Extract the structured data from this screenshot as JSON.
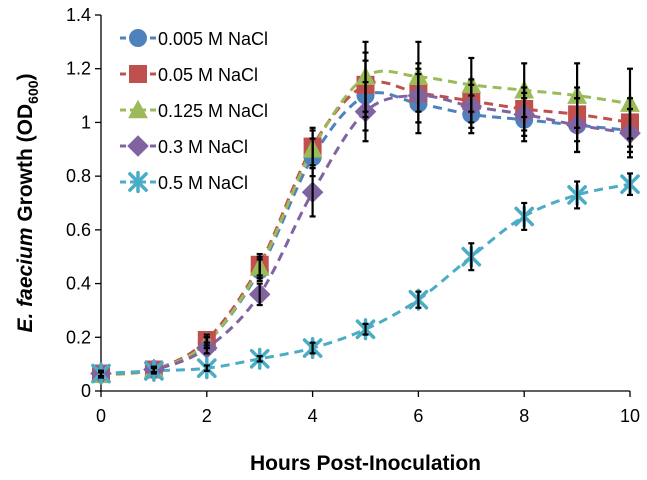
{
  "chart_data": {
    "type": "line",
    "title": "",
    "xlabel": "Hours Post-Inoculation",
    "ylabel": {
      "italic": "E. faecium",
      "normal": " Growth (OD",
      "subscript": "600",
      "close": ")"
    },
    "xlim": [
      0,
      10
    ],
    "ylim": [
      0,
      1.4
    ],
    "xticks": [
      0,
      2,
      4,
      6,
      8,
      10
    ],
    "xtick_labels": [
      "0",
      "2",
      "4",
      "6",
      "8",
      "10"
    ],
    "yticks": [
      0,
      0.2,
      0.4,
      0.6,
      0.8,
      1,
      1.2,
      1.4
    ],
    "ytick_labels": [
      "0",
      "0.2",
      "0.4",
      "0.6",
      "0.8",
      "1",
      "1.2",
      "1.4"
    ],
    "grid": false,
    "legend_position": "top-left",
    "x": [
      0,
      1,
      2,
      3,
      4,
      5,
      6,
      7,
      8,
      9,
      10
    ],
    "series": [
      {
        "name": "0.005 M NaCl",
        "color": "#4F81BD",
        "marker": "circle",
        "values": [
          0.065,
          0.08,
          0.18,
          0.45,
          0.87,
          1.1,
          1.07,
          1.03,
          1.01,
          0.99,
          0.97
        ],
        "errors": [
          0.01,
          0.01,
          0.02,
          0.04,
          0.07,
          0.13,
          0.11,
          0.07,
          0.08,
          0.1,
          0.08
        ]
      },
      {
        "name": "0.05 M NaCl",
        "color": "#C0504D",
        "marker": "square",
        "values": [
          0.065,
          0.08,
          0.19,
          0.47,
          0.91,
          1.14,
          1.11,
          1.08,
          1.05,
          1.03,
          1.0
        ],
        "errors": [
          0.01,
          0.01,
          0.02,
          0.04,
          0.07,
          0.12,
          0.11,
          0.08,
          0.08,
          0.1,
          0.09
        ]
      },
      {
        "name": "0.125 M NaCl",
        "color": "#9BBB59",
        "marker": "triangle",
        "values": [
          0.06,
          0.08,
          0.18,
          0.46,
          0.9,
          1.17,
          1.17,
          1.14,
          1.12,
          1.1,
          1.07
        ],
        "errors": [
          0.01,
          0.01,
          0.02,
          0.04,
          0.07,
          0.13,
          0.13,
          0.1,
          0.1,
          0.12,
          0.13
        ]
      },
      {
        "name": "0.3 M NaCl",
        "color": "#8064A2",
        "marker": "diamond",
        "values": [
          0.065,
          0.08,
          0.16,
          0.36,
          0.74,
          1.04,
          1.1,
          1.06,
          1.03,
          0.99,
          0.96
        ],
        "errors": [
          0.01,
          0.01,
          0.02,
          0.04,
          0.09,
          0.11,
          0.1,
          0.08,
          0.08,
          0.1,
          0.09
        ]
      },
      {
        "name": "0.5 M NaCl",
        "color": "#4BACC6",
        "marker": "star",
        "values": [
          0.065,
          0.075,
          0.085,
          0.12,
          0.16,
          0.23,
          0.34,
          0.5,
          0.65,
          0.73,
          0.77
        ],
        "errors": [
          0.01,
          0.01,
          0.01,
          0.01,
          0.02,
          0.02,
          0.03,
          0.05,
          0.05,
          0.05,
          0.04
        ]
      }
    ]
  }
}
